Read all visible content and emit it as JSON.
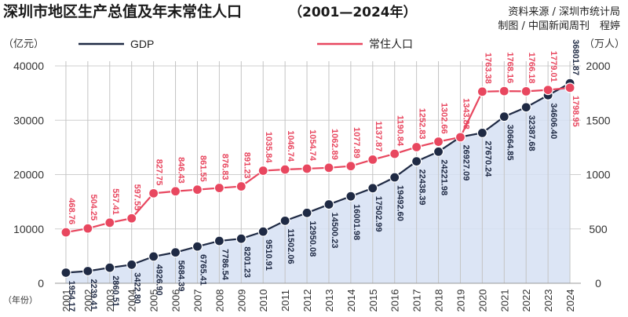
{
  "header": {
    "title": "深圳市地区生产总值及年末常住人口",
    "title_range": "（2001—2024年）",
    "source": "资料来源 / 深圳市统计局",
    "credit": "制图 / 中国新闻周刊　程婷"
  },
  "chart_data": {
    "type": "line",
    "categories": [
      "2001",
      "2002",
      "2003",
      "2004",
      "2005",
      "2006",
      "2007",
      "2008",
      "2009",
      "2010",
      "2011",
      "2012",
      "2013",
      "2014",
      "2015",
      "2016",
      "2017",
      "2018",
      "2019",
      "2020",
      "2021",
      "2022",
      "2023",
      "2024"
    ],
    "left_axis": {
      "unit": "（亿元）",
      "ticks": [
        "0",
        "10000",
        "20000",
        "30000",
        "40000"
      ],
      "ylim": [
        0,
        40000
      ]
    },
    "right_axis": {
      "unit": "（万人）",
      "ticks": [
        "0",
        "500",
        "1000",
        "1500",
        "2000"
      ],
      "ylim": [
        0,
        2000
      ]
    },
    "x_unit": "（年份）",
    "grid": true,
    "colors": {
      "gdp": "#1f2a44",
      "pop": "#e8475f",
      "gdp_fill": "#d6e1f3",
      "axis_text": "#333333"
    },
    "series": [
      {
        "name": "GDP",
        "axis": "left",
        "values": [
          1954.17,
          2239.41,
          2860.51,
          3422.8,
          4926.9,
          5684.39,
          6765.41,
          7786.54,
          8201.23,
          9510.91,
          11502.06,
          12950.08,
          14500.23,
          16001.98,
          17502.99,
          19492.6,
          22438.39,
          24221.98,
          26927.09,
          27670.24,
          30664.85,
          32387.68,
          34606.4,
          36801.87
        ],
        "labels": [
          "1954.17",
          "2239.41",
          "2860.51",
          "3422.80",
          "4926.90",
          "5684.39",
          "6765.41",
          "7786.54",
          "8201.23",
          "9510.91",
          "11502.06",
          "12950.08",
          "14500.23",
          "16001.98",
          "17502.99",
          "19492.60",
          "22438.39",
          "24221.98",
          "26927.09",
          "27670.24",
          "30664.85",
          "32387.68",
          "34606.40",
          "36801.87"
        ]
      },
      {
        "name": "常住人口",
        "axis": "right",
        "values": [
          468.76,
          504.25,
          557.41,
          597.55,
          827.75,
          846.43,
          861.55,
          876.83,
          891.23,
          1035.84,
          1046.74,
          1054.74,
          1062.89,
          1077.89,
          1137.87,
          1190.84,
          1252.83,
          1302.66,
          1343.88,
          1763.38,
          1768.16,
          1766.18,
          1779.01,
          1798.95
        ],
        "labels": [
          "468.76",
          "504.25",
          "557.41",
          "597.55",
          "827.75",
          "846.43",
          "861.55",
          "876.83",
          "891.23",
          "1035.84",
          "1046.74",
          "1054.74",
          "1062.89",
          "1077.89",
          "1137.87",
          "1190.84",
          "1252.83",
          "1302.66",
          "1343.88",
          "1763.38",
          "1768.16",
          "1766.18",
          "1779.01",
          "1798.95"
        ]
      }
    ]
  }
}
